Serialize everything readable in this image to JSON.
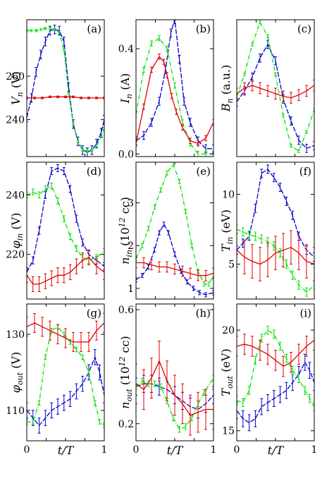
{
  "colors": {
    "blue": "#0000c8",
    "green": "#00e000",
    "red": "#e00000"
  },
  "chart_data": [
    {
      "type": "line",
      "panel_label": "(a)",
      "ylabel": "V_n (V)",
      "xlabel": "",
      "xlim": [
        0,
        1
      ],
      "ylim": [
        223,
        286
      ],
      "xticks": [],
      "yticks": [
        {
          "v": 240,
          "label": "240"
        },
        {
          "v": 260,
          "label": "260"
        }
      ],
      "series": [
        {
          "color": "blue",
          "x": [
            0,
            0.06,
            0.12,
            0.18,
            0.24,
            0.3,
            0.36,
            0.42,
            0.48,
            0.54,
            0.6,
            0.66,
            0.72,
            0.78,
            0.84,
            0.9,
            0.96,
            1
          ],
          "y": [
            241,
            250,
            262,
            270,
            276,
            281,
            281.5,
            281,
            276,
            255,
            238,
            230,
            226,
            225,
            226,
            229,
            234,
            240
          ],
          "err": 2
        },
        {
          "color": "green",
          "x": [
            0,
            0.06,
            0.12,
            0.18,
            0.24,
            0.3,
            0.36,
            0.42,
            0.48,
            0.54,
            0.6,
            0.66,
            0.72,
            0.78,
            0.84,
            0.9,
            0.96,
            1
          ],
          "y": [
            281,
            281,
            281,
            281.5,
            282,
            282,
            281.5,
            280,
            272,
            252,
            238,
            230,
            226,
            225.5,
            226,
            228,
            232,
            236
          ],
          "err": 0.5
        },
        {
          "color": "red",
          "x": [
            0,
            0.1,
            0.2,
            0.3,
            0.4,
            0.5,
            0.6,
            0.7,
            0.8,
            0.9,
            1
          ],
          "y": [
            250,
            250,
            250,
            250.5,
            250.5,
            250.5,
            250.5,
            250,
            250,
            250,
            250
          ],
          "err": 0.4
        }
      ]
    },
    {
      "type": "line",
      "panel_label": "(b)",
      "ylabel": "I_n (A)",
      "xlabel": "",
      "xlim": [
        0,
        1
      ],
      "ylim": [
        -0.01,
        0.51
      ],
      "xticks": [],
      "yticks": [
        {
          "v": 0,
          "label": "0.0"
        },
        {
          "v": 0.4,
          "label": "0.4"
        }
      ],
      "series": [
        {
          "color": "blue",
          "x": [
            0,
            0.1,
            0.2,
            0.3,
            0.38,
            0.45,
            0.5,
            0.56,
            0.62,
            0.7,
            0.8,
            0.9,
            1
          ],
          "y": [
            0.05,
            0.07,
            0.12,
            0.2,
            0.32,
            0.46,
            0.51,
            0.36,
            0.2,
            0.12,
            0.05,
            0.02,
            0.02
          ],
          "err": 0.015
        },
        {
          "color": "green",
          "x": [
            0,
            0.1,
            0.2,
            0.3,
            0.4,
            0.5,
            0.6,
            0.7,
            0.8,
            0.9,
            1
          ],
          "y": [
            0.15,
            0.32,
            0.42,
            0.44,
            0.4,
            0.26,
            0.12,
            0.04,
            0.0,
            0.0,
            0.0
          ],
          "err": 0.01
        },
        {
          "color": "red",
          "x": [
            0,
            0.1,
            0.2,
            0.3,
            0.36,
            0.4,
            0.46,
            0.52,
            0.6,
            0.7,
            0.8,
            0.9,
            1
          ],
          "y": [
            0.04,
            0.18,
            0.32,
            0.37,
            0.35,
            0.3,
            0.22,
            0.16,
            0.1,
            0.05,
            0.04,
            0.06,
            0.12
          ],
          "err": 0.01
        }
      ]
    },
    {
      "type": "line",
      "panel_label": "(c)",
      "ylabel": "B_n (a.u.)",
      "xlabel": "",
      "xlim": [
        0,
        1
      ],
      "ylim": [
        0,
        1
      ],
      "xticks": [],
      "yticks": [],
      "series": [
        {
          "color": "blue",
          "x": [
            0,
            0.1,
            0.2,
            0.3,
            0.4,
            0.5,
            0.6,
            0.7,
            0.8,
            0.9,
            1
          ],
          "y": [
            0.4,
            0.48,
            0.58,
            0.72,
            0.82,
            0.7,
            0.42,
            0.26,
            0.12,
            0.06,
            0.08
          ],
          "err": 0.03
        },
        {
          "color": "green",
          "x": [
            0,
            0.1,
            0.2,
            0.3,
            0.4,
            0.5,
            0.6,
            0.7,
            0.8,
            0.9,
            1
          ],
          "y": [
            0.44,
            0.6,
            0.82,
            0.98,
            0.88,
            0.6,
            0.3,
            0.08,
            0.04,
            0.18,
            0.34
          ],
          "err": 0.01
        },
        {
          "color": "red",
          "x": [
            0,
            0.1,
            0.2,
            0.3,
            0.4,
            0.5,
            0.6,
            0.7,
            0.8,
            0.9,
            1
          ],
          "y": [
            0.46,
            0.5,
            0.52,
            0.5,
            0.48,
            0.46,
            0.44,
            0.43,
            0.45,
            0.48,
            0.52
          ],
          "err": 0.04
        }
      ]
    },
    {
      "type": "line",
      "panel_label": "(d)",
      "ylabel": "φ_in (V)",
      "xlabel": "",
      "xlim": [
        0,
        1
      ],
      "ylim": [
        205,
        251
      ],
      "xticks": [],
      "yticks": [
        {
          "v": 220,
          "label": "220"
        },
        {
          "v": 240,
          "label": "240"
        }
      ],
      "series": [
        {
          "color": "blue",
          "x": [
            0,
            0.08,
            0.16,
            0.24,
            0.32,
            0.4,
            0.48,
            0.56,
            0.64,
            0.72,
            0.8,
            0.9,
            1
          ],
          "y": [
            214,
            218,
            228,
            240,
            248,
            249,
            248,
            242,
            232,
            224,
            220,
            218,
            216
          ],
          "err": 1.2
        },
        {
          "color": "green",
          "x": [
            0,
            0.08,
            0.16,
            0.24,
            0.32,
            0.4,
            0.48,
            0.56,
            0.64,
            0.72,
            0.8,
            0.9,
            1
          ],
          "y": [
            240,
            241,
            240,
            242,
            243,
            238,
            232,
            226,
            222,
            219,
            218,
            219,
            221
          ],
          "err": 1
        },
        {
          "color": "red",
          "x": [
            0,
            0.08,
            0.16,
            0.24,
            0.32,
            0.4,
            0.48,
            0.56,
            0.64,
            0.72,
            0.8,
            0.9,
            1
          ],
          "y": [
            213,
            210,
            210,
            211,
            212,
            213,
            213,
            214,
            216,
            218,
            219,
            216,
            214
          ],
          "err": 2.5
        }
      ]
    },
    {
      "type": "line",
      "panel_label": "(e)",
      "ylabel": "n_in (10^12 cc)",
      "xlabel": "",
      "xlim": [
        0,
        1
      ],
      "ylim": [
        0.75,
        3.95
      ],
      "xticks": [],
      "yticks": [
        {
          "v": 1,
          "label": "1"
        },
        {
          "v": 2,
          "label": "2"
        },
        {
          "v": 3,
          "label": "3"
        }
      ],
      "series": [
        {
          "color": "blue",
          "x": [
            0,
            0.08,
            0.16,
            0.24,
            0.3,
            0.36,
            0.42,
            0.5,
            0.58,
            0.66,
            0.74,
            0.82,
            0.9,
            1
          ],
          "y": [
            1.2,
            1.3,
            1.5,
            1.9,
            2.3,
            2.5,
            2.3,
            1.8,
            1.4,
            1.15,
            1.0,
            0.9,
            0.85,
            0.9
          ],
          "err": 0.05
        },
        {
          "color": "green",
          "x": [
            0,
            0.08,
            0.16,
            0.24,
            0.32,
            0.4,
            0.48,
            0.56,
            0.64,
            0.72,
            0.8,
            0.88,
            0.94,
            1
          ],
          "y": [
            1.7,
            2.0,
            2.4,
            2.9,
            3.3,
            3.7,
            3.9,
            3.5,
            2.8,
            2.0,
            1.4,
            1.1,
            1.1,
            1.3
          ],
          "err": 0.05
        },
        {
          "color": "red",
          "x": [
            0,
            0.1,
            0.2,
            0.3,
            0.4,
            0.5,
            0.6,
            0.7,
            0.8,
            0.9,
            1
          ],
          "y": [
            1.6,
            1.6,
            1.55,
            1.5,
            1.5,
            1.45,
            1.4,
            1.35,
            1.3,
            1.3,
            1.35
          ],
          "err": 0.12
        }
      ]
    },
    {
      "type": "line",
      "panel_label": "(f)",
      "ylabel": "T_in (eV)",
      "xlabel": "",
      "xlim": [
        0,
        1
      ],
      "ylim": [
        2.5,
        12.3
      ],
      "xticks": [],
      "yticks": [
        {
          "v": 5,
          "label": "5"
        },
        {
          "v": 10,
          "label": "10"
        }
      ],
      "series": [
        {
          "color": "blue",
          "x": [
            0,
            0.08,
            0.16,
            0.24,
            0.32,
            0.4,
            0.48,
            0.56,
            0.64,
            0.72,
            0.8,
            0.9,
            1
          ],
          "y": [
            6,
            6.5,
            7,
            9,
            11.5,
            11.8,
            11.2,
            10.5,
            9.5,
            8.5,
            7,
            6,
            5.5
          ],
          "err": 0.3
        },
        {
          "color": "green",
          "x": [
            0,
            0.08,
            0.16,
            0.24,
            0.32,
            0.4,
            0.48,
            0.56,
            0.64,
            0.72,
            0.8,
            0.9,
            1
          ],
          "y": [
            7.5,
            7.3,
            7.1,
            7,
            6.8,
            6.6,
            6.3,
            5.8,
            5,
            4.2,
            3.5,
            3,
            3.5
          ],
          "err": 0.3
        },
        {
          "color": "red",
          "x": [
            0,
            0.1,
            0.2,
            0.3,
            0.4,
            0.5,
            0.6,
            0.7,
            0.8,
            0.9,
            1
          ],
          "y": [
            6,
            5.5,
            5.2,
            5,
            5.3,
            5.8,
            6,
            6.2,
            5.8,
            5.2,
            5
          ],
          "err": 1.2
        }
      ]
    },
    {
      "type": "line",
      "panel_label": "(g)",
      "ylabel": "φ_out (V)",
      "xlabel": "t/T",
      "xlim": [
        0,
        1
      ],
      "ylim": [
        102,
        138
      ],
      "xticks": [
        {
          "v": 0,
          "label": "0"
        },
        {
          "v": 1,
          "label": "1"
        }
      ],
      "yticks": [
        {
          "v": 110,
          "label": "110"
        },
        {
          "v": 130,
          "label": "130"
        }
      ],
      "series": [
        {
          "color": "blue",
          "x": [
            0,
            0.08,
            0.16,
            0.24,
            0.32,
            0.4,
            0.48,
            0.56,
            0.64,
            0.72,
            0.8,
            0.88,
            0.94,
            1
          ],
          "y": [
            110,
            108,
            106,
            108,
            110,
            111,
            112,
            113,
            115,
            117,
            120,
            124,
            120,
            114
          ],
          "err": 2
        },
        {
          "color": "green",
          "x": [
            0,
            0.08,
            0.16,
            0.24,
            0.32,
            0.4,
            0.48,
            0.56,
            0.64,
            0.72,
            0.8,
            0.88,
            0.94,
            1
          ],
          "y": [
            107,
            107,
            112,
            124,
            131,
            132,
            130,
            128,
            126,
            124,
            120,
            112,
            107,
            106
          ],
          "err": 0.6
        },
        {
          "color": "red",
          "x": [
            0,
            0.1,
            0.2,
            0.3,
            0.4,
            0.5,
            0.6,
            0.7,
            0.8,
            0.9,
            1
          ],
          "y": [
            132,
            133,
            132,
            131,
            130,
            129,
            128,
            128,
            128,
            131,
            133
          ],
          "err": 2.5
        }
      ]
    },
    {
      "type": "line",
      "panel_label": "(h)",
      "ylabel": "n_out (10^12 cc)",
      "xlabel": "t/T",
      "xlim": [
        0,
        1
      ],
      "ylim": [
        0.14,
        0.62
      ],
      "xticks": [
        {
          "v": 0,
          "label": "0"
        },
        {
          "v": 1,
          "label": "1"
        }
      ],
      "yticks": [
        {
          "v": 0.2,
          "label": "0.2"
        },
        {
          "v": 0.6,
          "label": "0.6"
        }
      ],
      "series": [
        {
          "color": "blue",
          "x": [
            0,
            0.1,
            0.2,
            0.3,
            0.4,
            0.5,
            0.6,
            0.7,
            0.8,
            0.9,
            1
          ],
          "y": [
            0.33,
            0.34,
            0.34,
            0.33,
            0.32,
            0.3,
            0.28,
            0.26,
            0.25,
            0.27,
            0.3
          ],
          "err": 0.03
        },
        {
          "color": "green",
          "x": [
            0,
            0.08,
            0.16,
            0.24,
            0.32,
            0.4,
            0.48,
            0.56,
            0.64,
            0.72,
            0.8,
            0.88,
            1
          ],
          "y": [
            0.33,
            0.35,
            0.34,
            0.34,
            0.33,
            0.28,
            0.22,
            0.18,
            0.19,
            0.22,
            0.27,
            0.31,
            0.36
          ],
          "err": 0.01
        },
        {
          "color": "red",
          "x": [
            0,
            0.1,
            0.2,
            0.3,
            0.4,
            0.5,
            0.6,
            0.7,
            0.8,
            0.9,
            1
          ],
          "y": [
            0.34,
            0.32,
            0.36,
            0.42,
            0.35,
            0.3,
            0.27,
            0.23,
            0.24,
            0.25,
            0.25
          ],
          "err": 0.07
        }
      ]
    },
    {
      "type": "line",
      "panel_label": "(i)",
      "ylabel": "T_out (eV)",
      "xlabel": "t/T",
      "xlim": [
        0,
        1
      ],
      "ylim": [
        14.5,
        21.3
      ],
      "xticks": [
        {
          "v": 0,
          "label": "0"
        },
        {
          "v": 1,
          "label": "1"
        }
      ],
      "yticks": [
        {
          "v": 15,
          "label": "15"
        },
        {
          "v": 20,
          "label": "20"
        }
      ],
      "series": [
        {
          "color": "blue",
          "x": [
            0,
            0.08,
            0.16,
            0.24,
            0.32,
            0.4,
            0.48,
            0.56,
            0.64,
            0.72,
            0.8,
            0.88,
            0.94,
            1
          ],
          "y": [
            16,
            15.6,
            15.4,
            15.6,
            16.2,
            16.4,
            16.6,
            16.8,
            17,
            17.4,
            17.8,
            18.4,
            18,
            17.4
          ],
          "err": 0.4
        },
        {
          "color": "green",
          "x": [
            0,
            0.08,
            0.16,
            0.24,
            0.32,
            0.4,
            0.48,
            0.56,
            0.64,
            0.72,
            0.8,
            0.88,
            0.94,
            1
          ],
          "y": [
            16.5,
            16.4,
            17,
            18.5,
            19.6,
            20,
            19.8,
            19.2,
            18.6,
            18,
            17.6,
            17,
            16.6,
            16.2
          ],
          "err": 0.2
        },
        {
          "color": "red",
          "x": [
            0,
            0.1,
            0.2,
            0.3,
            0.4,
            0.5,
            0.6,
            0.7,
            0.8,
            0.9,
            1
          ],
          "y": [
            19.2,
            19.3,
            19.2,
            19,
            18.8,
            18.5,
            18.2,
            18.4,
            18.8,
            19.2,
            19.5
          ],
          "err": 0.5
        }
      ]
    }
  ]
}
